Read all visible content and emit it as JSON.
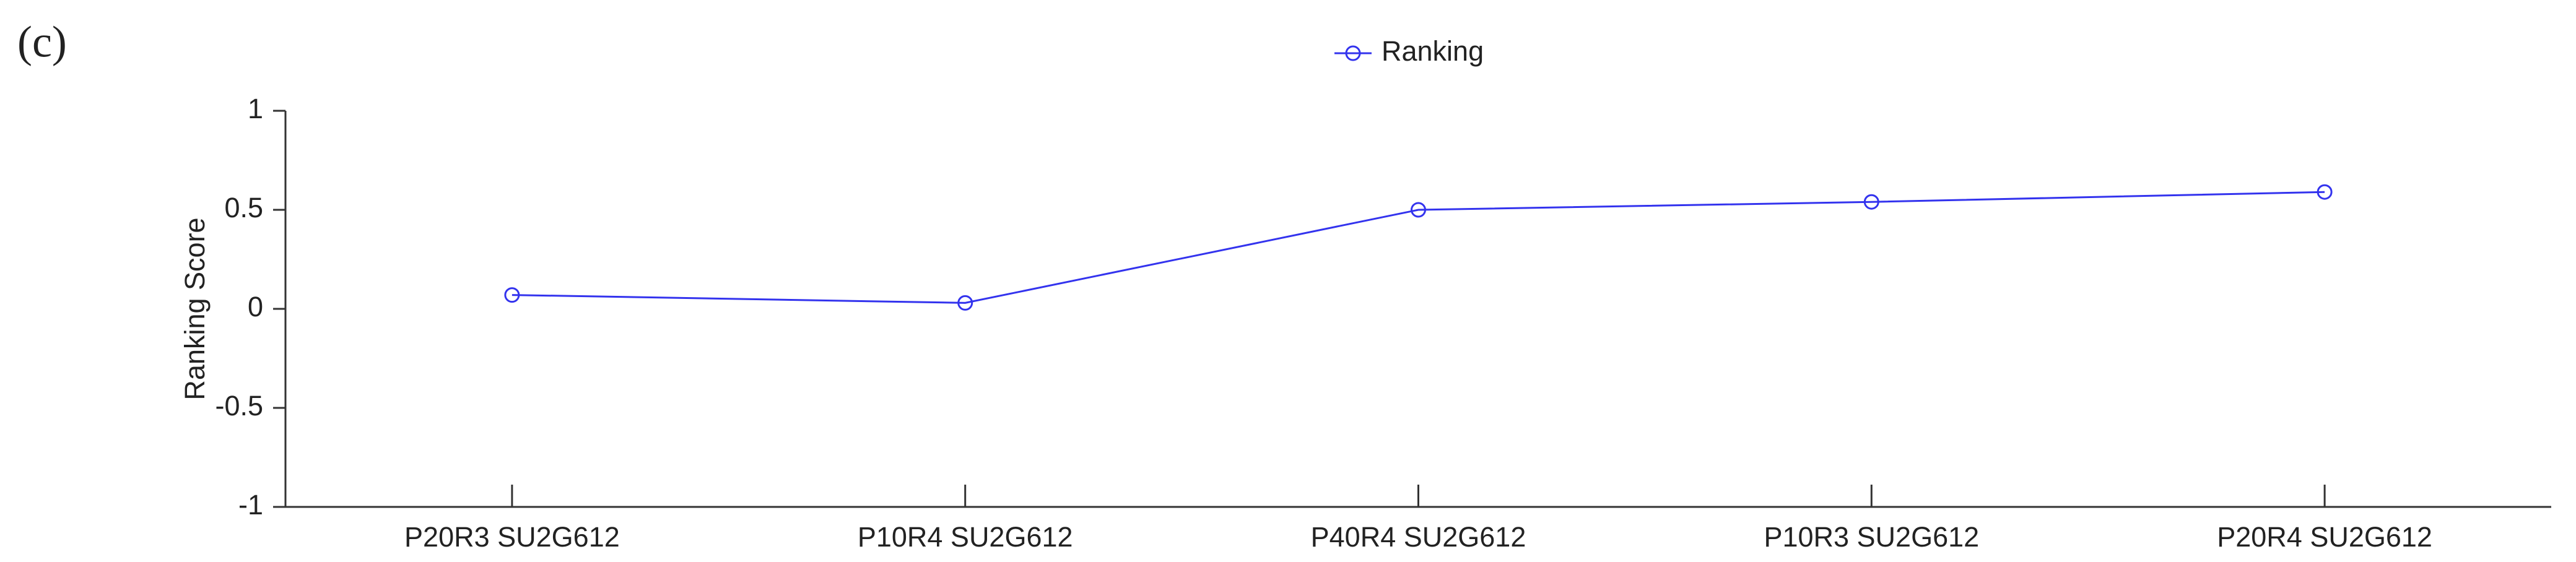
{
  "panel_label": "(c)",
  "chart_data": {
    "type": "line",
    "ylabel": "Ranking Score",
    "categories": [
      "P20R3 SU2G612",
      "P10R4 SU2G612",
      "P40R4 SU2G612",
      "P10R3 SU2G612",
      "P20R4 SU2G612"
    ],
    "series": [
      {
        "name": "Ranking",
        "color": "#3333ee",
        "values": [
          0.07,
          0.03,
          0.5,
          0.54,
          0.59
        ]
      }
    ],
    "ylim": [
      -1,
      1
    ],
    "yticks": [
      -1,
      -0.5,
      0,
      0.5,
      1
    ],
    "legend": "top"
  }
}
